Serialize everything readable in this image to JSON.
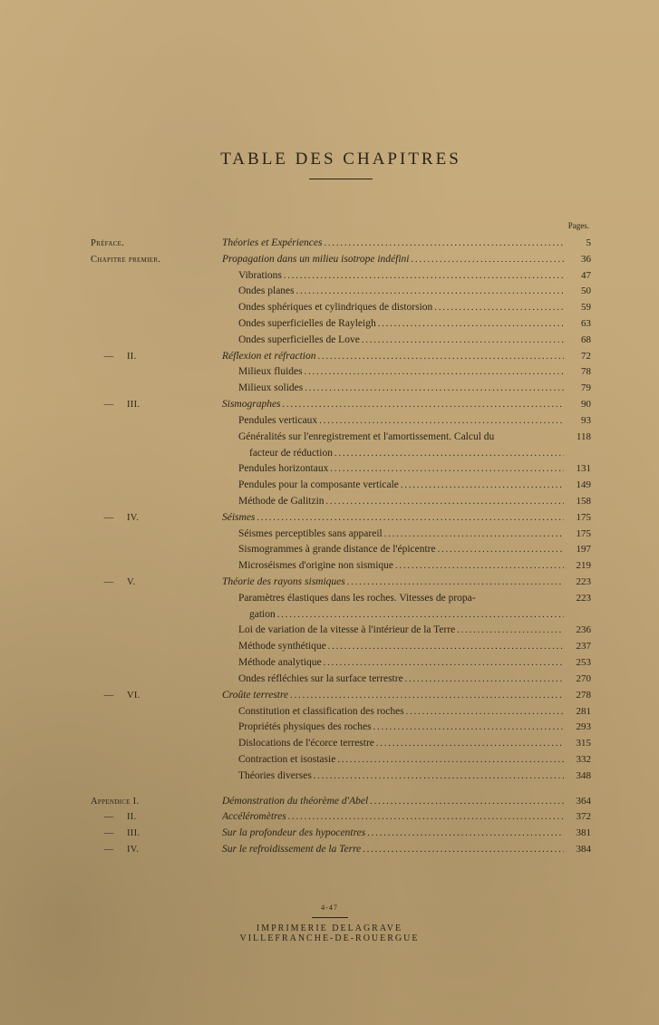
{
  "title": "TABLE DES CHAPITRES",
  "pages_label": "Pages.",
  "entries": [
    {
      "label": "Préface.",
      "text": "Théories et Expériences",
      "italic": true,
      "page": "5",
      "indent": false
    },
    {
      "label": "Chapitre premier.",
      "text": "Propagation dans un milieu isotrope indéfini",
      "italic": true,
      "page": "36",
      "indent": false
    },
    {
      "label": "",
      "text": "Vibrations",
      "italic": false,
      "page": "47",
      "indent": true
    },
    {
      "label": "",
      "text": "Ondes planes",
      "italic": false,
      "page": "50",
      "indent": true
    },
    {
      "label": "",
      "text": "Ondes sphériques et cylindriques de distorsion",
      "italic": false,
      "page": "59",
      "indent": true
    },
    {
      "label": "",
      "text": "Ondes superficielles de Rayleigh",
      "italic": false,
      "page": "63",
      "indent": true
    },
    {
      "label": "",
      "text": "Ondes superficielles de Love",
      "italic": false,
      "page": "68",
      "indent": true
    },
    {
      "label": "— II.",
      "text": "Réflexion et réfraction",
      "italic": true,
      "page": "72",
      "indent": false,
      "dash": true,
      "roman": "II."
    },
    {
      "label": "",
      "text": "Milieux fluides",
      "italic": false,
      "page": "78",
      "indent": true
    },
    {
      "label": "",
      "text": "Milieux solides",
      "italic": false,
      "page": "79",
      "indent": true
    },
    {
      "label": "— III.",
      "text": "Sismographes",
      "italic": true,
      "page": "90",
      "indent": false,
      "dash": true,
      "roman": "III."
    },
    {
      "label": "",
      "text": "Pendules verticaux",
      "italic": false,
      "page": "93",
      "indent": true
    },
    {
      "label": "",
      "text": "Généralités sur l'enregistrement et l'amortissement. Calcul du facteur de réduction",
      "italic": false,
      "page": "118",
      "indent": true,
      "multiline": true,
      "line1": "Généralités sur l'enregistrement et l'amortissement. Calcul du",
      "line2": "facteur de réduction"
    },
    {
      "label": "",
      "text": "Pendules horizontaux",
      "italic": false,
      "page": "131",
      "indent": true
    },
    {
      "label": "",
      "text": "Pendules pour la composante verticale",
      "italic": false,
      "page": "149",
      "indent": true
    },
    {
      "label": "",
      "text": "Méthode de Galitzin",
      "italic": false,
      "page": "158",
      "indent": true
    },
    {
      "label": "— IV.",
      "text": "Séismes",
      "italic": true,
      "page": "175",
      "indent": false,
      "dash": true,
      "roman": "IV."
    },
    {
      "label": "",
      "text": "Séismes perceptibles sans appareil",
      "italic": false,
      "page": "175",
      "indent": true
    },
    {
      "label": "",
      "text": "Sismogrammes à grande distance de l'épicentre",
      "italic": false,
      "page": "197",
      "indent": true
    },
    {
      "label": "",
      "text": "Microséismes d'origine non sismique",
      "italic": false,
      "page": "219",
      "indent": true
    },
    {
      "label": "— V.",
      "text": "Théorie des rayons sismiques",
      "italic": true,
      "page": "223",
      "indent": false,
      "dash": true,
      "roman": "V."
    },
    {
      "label": "",
      "text": "Paramètres élastiques dans les roches. Vitesses de propagation",
      "italic": false,
      "page": "223",
      "indent": true,
      "multiline": true,
      "line1": "Paramètres élastiques dans les roches. Vitesses de propa-",
      "line2": "gation"
    },
    {
      "label": "",
      "text": "Loi de variation de la vitesse à l'intérieur de la Terre",
      "italic": false,
      "page": "236",
      "indent": true
    },
    {
      "label": "",
      "text": "Méthode synthétique",
      "italic": false,
      "page": "237",
      "indent": true
    },
    {
      "label": "",
      "text": "Méthode analytique",
      "italic": false,
      "page": "253",
      "indent": true
    },
    {
      "label": "",
      "text": "Ondes réfléchies sur la surface terrestre",
      "italic": false,
      "page": "270",
      "indent": true
    },
    {
      "label": "— VI.",
      "text": "Croûte terrestre",
      "italic": true,
      "page": "278",
      "indent": false,
      "dash": true,
      "roman": "VI."
    },
    {
      "label": "",
      "text": "Constitution et classification des roches",
      "italic": false,
      "page": "281",
      "indent": true
    },
    {
      "label": "",
      "text": "Propriétés physiques des roches",
      "italic": false,
      "page": "293",
      "indent": true
    },
    {
      "label": "",
      "text": "Dislocations de l'écorce terrestre",
      "italic": false,
      "page": "315",
      "indent": true
    },
    {
      "label": "",
      "text": "Contraction et isostasie",
      "italic": false,
      "page": "332",
      "indent": true
    },
    {
      "label": "",
      "text": "Théories diverses",
      "italic": false,
      "page": "348",
      "indent": true
    },
    {
      "label": "spacer",
      "text": "",
      "page": ""
    },
    {
      "label": "Appendice I.",
      "text": "Démonstration du théorème d'Abel",
      "italic": true,
      "page": "364",
      "indent": false
    },
    {
      "label": "— II.",
      "text": "Accéléromètres",
      "italic": true,
      "page": "372",
      "indent": false,
      "dash": true,
      "roman": "II."
    },
    {
      "label": "— III.",
      "text": "Sur la profondeur des hypocentres",
      "italic": true,
      "page": "381",
      "indent": false,
      "dash": true,
      "roman": "III."
    },
    {
      "label": "— IV.",
      "text": "Sur le refroidissement de la Terre",
      "italic": true,
      "page": "384",
      "indent": false,
      "dash": true,
      "roman": "IV."
    }
  ],
  "footer": {
    "small": "4-47",
    "line1": "IMPRIMERIE DELAGRAVE",
    "line2": "VILLEFRANCHE-DE-ROUERGUE"
  }
}
